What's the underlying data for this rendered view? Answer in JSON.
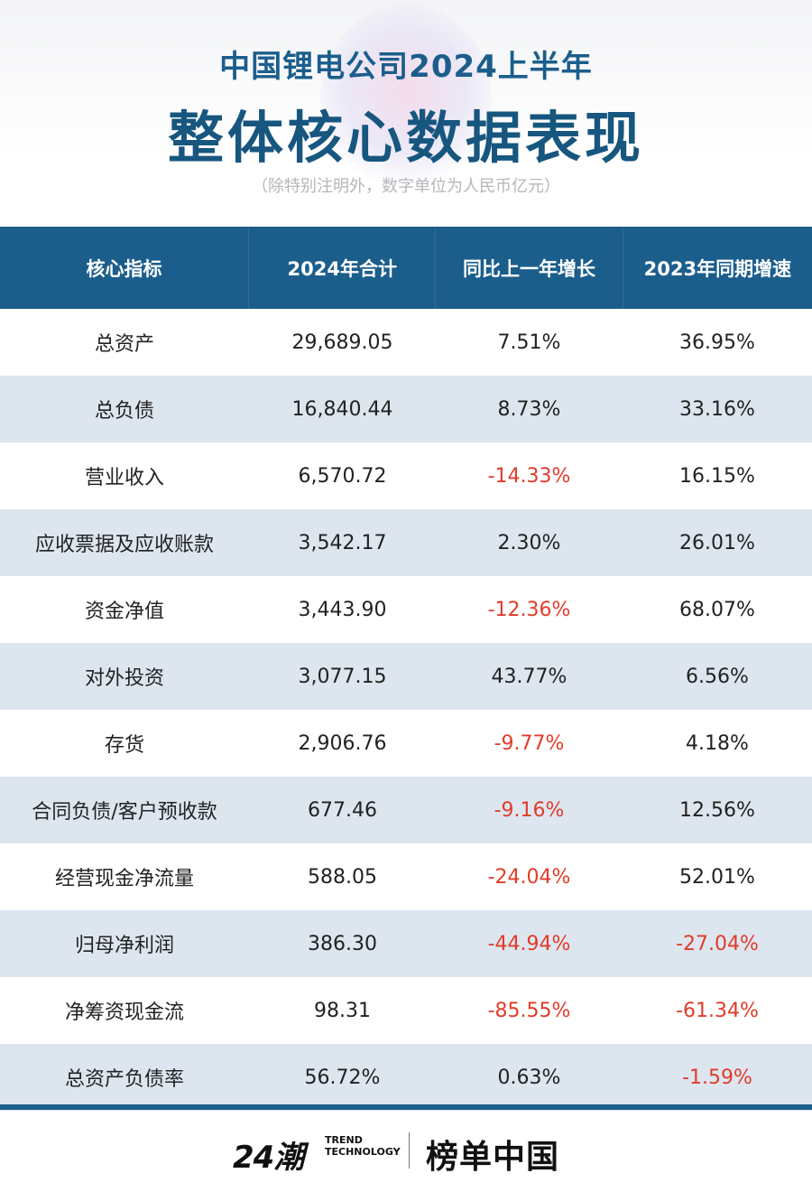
{
  "header": {
    "title_line1": "中国锂电公司2024上半年",
    "title_line2": "整体核心数据表现",
    "note": "（除特别注明外，数字单位为人民币亿元）"
  },
  "table": {
    "columns": [
      "核心指标",
      "2024年合计",
      "同比上一年增长",
      "2023年同期增速"
    ],
    "rows": [
      {
        "name": "总资产",
        "total": "29,689.05",
        "yoy": "7.51%",
        "prev": "36.95%"
      },
      {
        "name": "总负债",
        "total": "16,840.44",
        "yoy": "8.73%",
        "prev": "33.16%"
      },
      {
        "name": "营业收入",
        "total": "6,570.72",
        "yoy": "-14.33%",
        "prev": "16.15%"
      },
      {
        "name": "应收票据及应收账款",
        "total": "3,542.17",
        "yoy": "2.30%",
        "prev": "26.01%"
      },
      {
        "name": "资金净值",
        "total": "3,443.90",
        "yoy": "-12.36%",
        "prev": "68.07%"
      },
      {
        "name": "对外投资",
        "total": "3,077.15",
        "yoy": "43.77%",
        "prev": "6.56%"
      },
      {
        "name": "存货",
        "total": "2,906.76",
        "yoy": "-9.77%",
        "prev": "4.18%"
      },
      {
        "name": "合同负债/客户预收款",
        "total": "677.46",
        "yoy": "-9.16%",
        "prev": "12.56%"
      },
      {
        "name": "经营现金净流量",
        "total": "588.05",
        "yoy": "-24.04%",
        "prev": "52.01%"
      },
      {
        "name": "归母净利润",
        "total": "386.30",
        "yoy": "-44.94%",
        "prev": "-27.04%"
      },
      {
        "name": "净筹资现金流",
        "total": "98.31",
        "yoy": "-85.55%",
        "prev": "-61.34%"
      },
      {
        "name": "总资产负债率",
        "total": "56.72%",
        "yoy": "0.63%",
        "prev": "-1.59%"
      }
    ]
  },
  "colors": {
    "header_blue": "#1b5e8c",
    "row_alt": "#dde6ef",
    "negative": "#e23b2a"
  },
  "footer": {
    "logo_number": "24潮",
    "logo_sub_1": "TREND",
    "logo_sub_2": "TECHNOLOGY",
    "brand": "榜单中国"
  }
}
